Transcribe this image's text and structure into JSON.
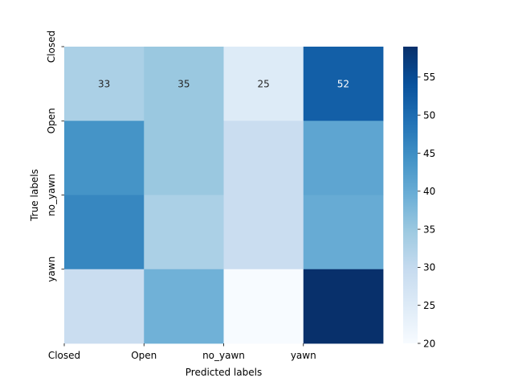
{
  "chart_data": {
    "type": "heatmap",
    "title": "",
    "xlabel": "Predicted labels",
    "ylabel": "True labels",
    "x_categories": [
      "Closed",
      "Open",
      "no_yawn",
      "yawn"
    ],
    "y_categories": [
      "Closed",
      "Open",
      "no_yawn",
      "yawn"
    ],
    "values": [
      [
        33,
        35,
        25,
        52
      ],
      [
        44,
        35,
        29,
        41
      ],
      [
        46,
        33,
        29,
        40
      ],
      [
        29,
        39,
        20,
        59
      ]
    ],
    "annotations": [
      [
        "33",
        "35",
        "25",
        "52"
      ],
      [
        "",
        "",
        "",
        ""
      ],
      [
        "",
        "",
        "",
        ""
      ],
      [
        "",
        "",
        "",
        ""
      ]
    ],
    "colormap": "Blues",
    "vmin": 20,
    "vmax": 59,
    "colorbar": {
      "ticks": [
        20,
        25,
        30,
        35,
        40,
        45,
        50,
        55
      ]
    },
    "grid": false
  }
}
